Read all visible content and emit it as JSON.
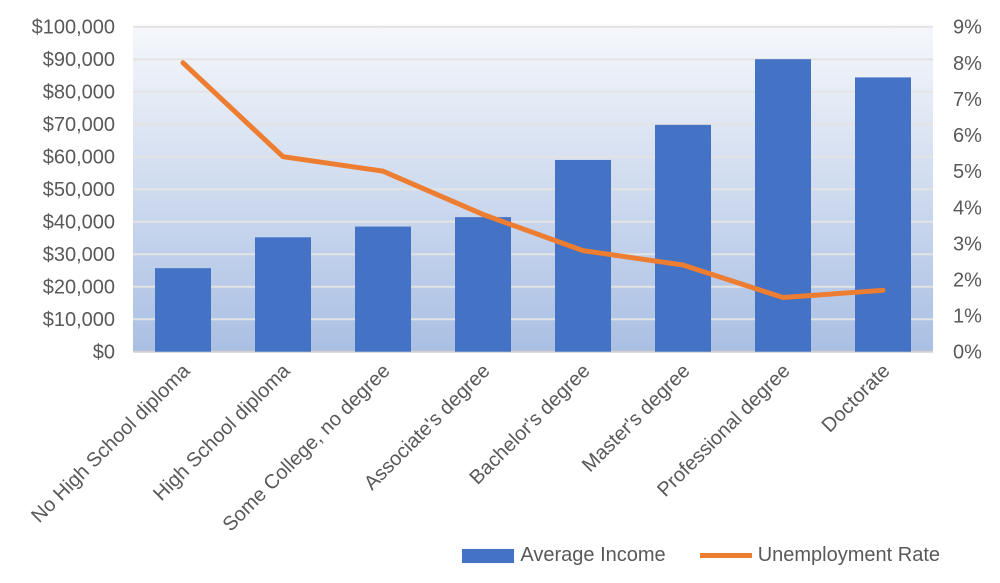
{
  "chart_data": {
    "type": "bar+line",
    "categories": [
      "No High School diploma",
      "High School diploma",
      "Some College, no degree",
      "Associate's degree",
      "Bachelor's degree",
      "Master's degree",
      "Professional degree",
      "Doctorate"
    ],
    "series": [
      {
        "name": "Average Income",
        "type": "bar",
        "axis": "left",
        "color": "#4472c4",
        "values": [
          25700,
          35200,
          38500,
          41400,
          59000,
          69800,
          90000,
          84400
        ]
      },
      {
        "name": "Unemployment Rate",
        "type": "line",
        "axis": "right",
        "color": "#ed7d31",
        "values": [
          8.0,
          5.4,
          5.0,
          3.8,
          2.8,
          2.4,
          1.5,
          1.7
        ]
      }
    ],
    "y_left": {
      "range": [
        0,
        100000
      ],
      "ticks": [
        "$0",
        "$10,000",
        "$20,000",
        "$30,000",
        "$40,000",
        "$50,000",
        "$60,000",
        "$70,000",
        "$80,000",
        "$90,000",
        "$100,000"
      ]
    },
    "y_right": {
      "range": [
        0,
        9
      ],
      "unit": "%",
      "ticks": [
        "0%",
        "1%",
        "2%",
        "3%",
        "4%",
        "5%",
        "6%",
        "7%",
        "8%",
        "9%"
      ]
    },
    "grid": true,
    "legend": "bottom-right",
    "title": "",
    "xlabel": "",
    "ylabel": ""
  }
}
